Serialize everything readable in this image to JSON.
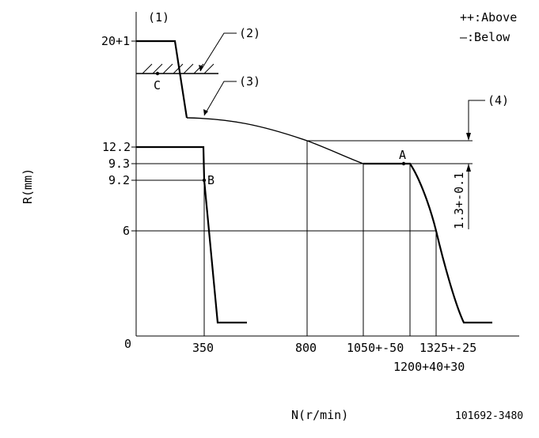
{
  "diagram": {
    "axes": {
      "y_label": "R(mm)",
      "x_label": "N(r/min)",
      "origin": "0"
    },
    "legend": {
      "above": "++:Above",
      "below": "—:Below"
    },
    "callouts": {
      "c1": "(1)",
      "c2": "(2)",
      "c3": "(3)",
      "c4": "(4)"
    },
    "y_ticks": {
      "t20": "20+1",
      "t12_2": "12.2",
      "t9_3": "9.3",
      "t9_2": "9.2",
      "t6": "6"
    },
    "x_ticks": {
      "t350": "350",
      "t800": "800",
      "t1050": "1050+-50",
      "t1325": "1325+-25",
      "t1200": "1200+40+30"
    },
    "points": {
      "a": "A",
      "b": "B",
      "c": "C"
    },
    "dimension": "1.3+-0.1",
    "drawing_number": "101692-3480"
  }
}
